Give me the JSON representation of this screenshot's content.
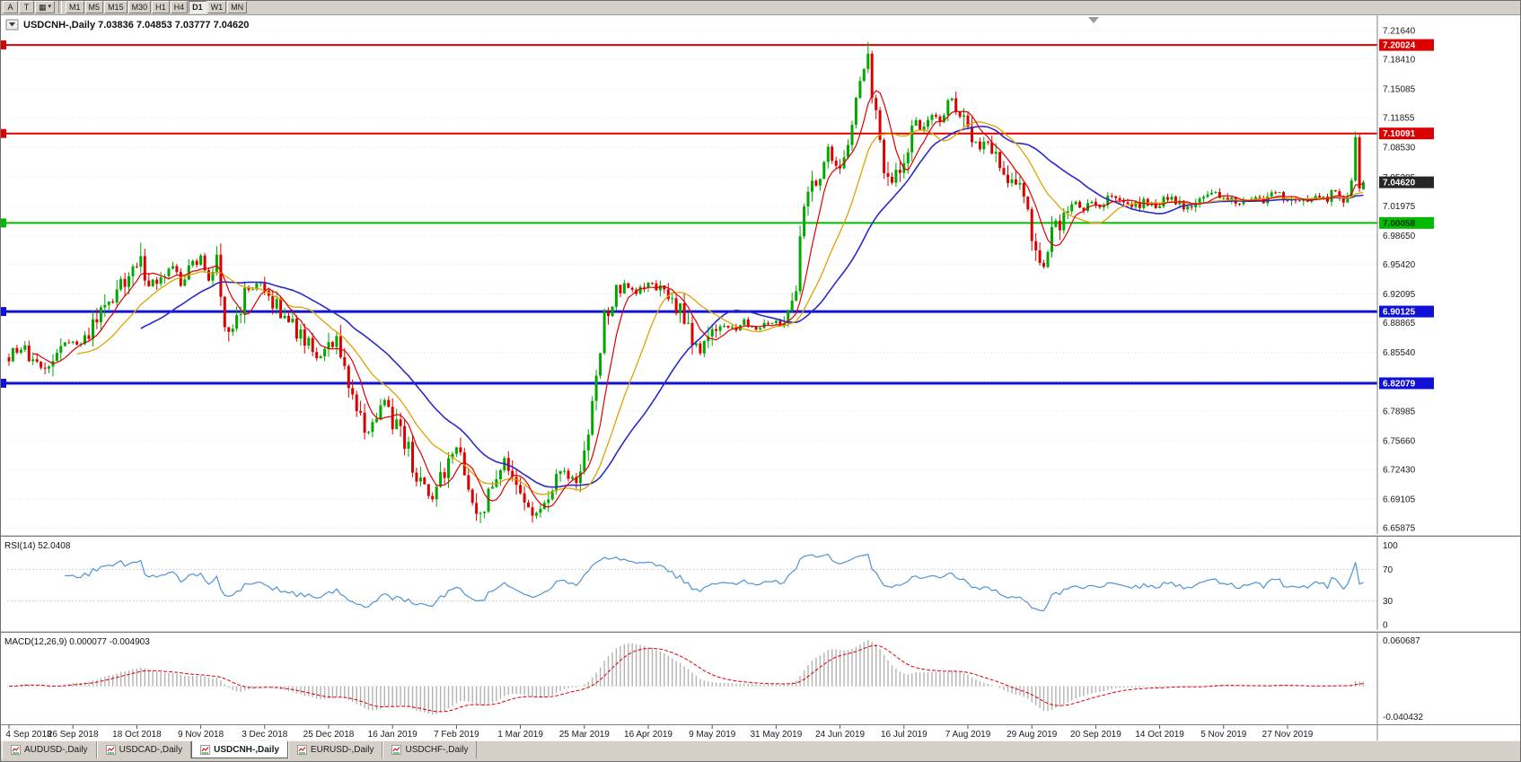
{
  "toolbar": {
    "left_buttons": [
      {
        "label": "A",
        "name": "toolbar-button-a"
      },
      {
        "label": "T",
        "name": "toolbar-button-t"
      },
      {
        "label": "",
        "name": "toolbar-templates-button",
        "icon": "template-grid-icon"
      }
    ],
    "timeframes": [
      "M1",
      "M5",
      "M15",
      "M30",
      "H1",
      "H4",
      "D1",
      "W1",
      "MN"
    ],
    "active_timeframe": "D1"
  },
  "chart": {
    "title_symbol": "USDCNH-,Daily",
    "ohlc_text": "7.03836 7.04853 7.03777 7.04620",
    "title_text": "USDCNH-,Daily  7.03836 7.04853 7.03777 7.04620",
    "current_price_label": "7.04620",
    "y_ticks": [
      "7.21640",
      "7.18410",
      "7.15085",
      "7.11855",
      "7.08530",
      "7.05205",
      "7.01975",
      "6.98650",
      "6.95420",
      "6.92095",
      "6.88865",
      "6.85540",
      "6.82310",
      "6.78985",
      "6.75660",
      "6.72430",
      "6.69105",
      "6.65875"
    ],
    "hlines": [
      {
        "label": "7.20024",
        "price": 7.20024,
        "color": "#dd0000",
        "text_color": "#ffffff",
        "width": 2
      },
      {
        "label": "7.10091",
        "price": 7.10091,
        "color": "#dd0000",
        "text_color": "#ffffff",
        "width": 2
      },
      {
        "label": "7.00058",
        "price": 7.00058,
        "color": "#00bb00",
        "text_color": "#003300",
        "width": 2
      },
      {
        "label": "6.90125",
        "price": 6.90125,
        "color": "#1010d6",
        "text_color": "#ffffff",
        "width": 3
      },
      {
        "label": "6.82079",
        "price": 6.82079,
        "color": "#1010d6",
        "text_color": "#ffffff",
        "width": 3
      }
    ]
  },
  "indicators": {
    "rsi": {
      "label": "RSI(14) 52.0408",
      "value": 52.0408,
      "scale_labels": [
        "100",
        "70",
        "30",
        "0"
      ],
      "levels": [
        70,
        30
      ]
    },
    "macd": {
      "label": "MACD(12,26,9) 0.000077 -0.004903",
      "main_value": 7.7e-05,
      "signal_value": -0.004903,
      "scale_top": "0.060687",
      "scale_bottom": "-0.040432"
    }
  },
  "x_axis": {
    "date_labels": [
      "4 Sep 2018",
      "26 Sep 2018",
      "18 Oct 2018",
      "9 Nov 2018",
      "3 Dec 2018",
      "25 Dec 2018",
      "16 Jan 2019",
      "7 Feb 2019",
      "1 Mar 2019",
      "25 Mar 2019",
      "16 Apr 2019",
      "9 May 2019",
      "31 May 2019",
      "24 Jun 2019",
      "16 Jul 2019",
      "7 Aug 2019",
      "29 Aug 2019",
      "20 Sep 2019",
      "14 Oct 2019",
      "5 Nov 2019",
      "27 Nov 2019"
    ]
  },
  "tabs": {
    "items": [
      "AUDUSD-,Daily",
      "USDCAD-,Daily",
      "USDCNH-,Daily",
      "EURUSD-,Daily",
      "USDCHF-,Daily"
    ],
    "active_index": 2
  },
  "colors": {
    "candle_up": "#00a800",
    "candle_down": "#dd0000",
    "ma_fast": "#e00000",
    "ma_medium": "#dfa200",
    "ma_slow": "#2a2ac8",
    "rsi_line": "#4f93d6",
    "macd_hist": "#b2b2b2",
    "macd_signal": "#dd0000",
    "bid_tag_bg": "#262626"
  },
  "chart_data": {
    "type": "candlestick",
    "symbol": "USDCNH",
    "timeframe": "Daily",
    "num_candles": 340,
    "price_range": [
      6.65875,
      7.2164
    ],
    "ohlc_current": {
      "open": 7.03836,
      "high": 7.04853,
      "low": 7.03777,
      "close": 7.0462
    },
    "horizontal_lines": [
      7.20024,
      7.10091,
      7.00058,
      6.90125,
      6.82079
    ],
    "date_labels_every_n_candles": 16,
    "moving_average_periods": {
      "fast": 7,
      "medium": 18,
      "slow": 34
    },
    "rsi": {
      "period": 14,
      "current": 52.0408,
      "range": [
        0,
        100
      ],
      "levels": [
        30,
        70
      ]
    },
    "macd": {
      "fast": 12,
      "slow": 26,
      "signal": 9,
      "current_main": 7.7e-05,
      "current_signal": -0.004903,
      "scale_max": 0.060687,
      "scale_min": -0.040432
    },
    "anchor_points": [
      [
        0,
        6.85
      ],
      [
        3,
        6.862
      ],
      [
        6,
        6.84
      ],
      [
        9,
        6.836
      ],
      [
        12,
        6.856
      ],
      [
        15,
        6.868
      ],
      [
        18,
        6.862
      ],
      [
        21,
        6.882
      ],
      [
        24,
        6.906
      ],
      [
        27,
        6.922
      ],
      [
        30,
        6.94
      ],
      [
        33,
        6.958
      ],
      [
        35,
        6.93
      ],
      [
        38,
        6.944
      ],
      [
        41,
        6.952
      ],
      [
        43,
        6.93
      ],
      [
        45,
        6.948
      ],
      [
        48,
        6.958
      ],
      [
        50,
        6.94
      ],
      [
        52,
        6.962
      ],
      [
        54,
        6.892
      ],
      [
        56,
        6.882
      ],
      [
        58,
        6.906
      ],
      [
        60,
        6.93
      ],
      [
        63,
        6.928
      ],
      [
        66,
        6.912
      ],
      [
        69,
        6.898
      ],
      [
        72,
        6.88
      ],
      [
        75,
        6.862
      ],
      [
        78,
        6.848
      ],
      [
        80,
        6.858
      ],
      [
        82,
        6.87
      ],
      [
        84,
        6.84
      ],
      [
        86,
        6.812
      ],
      [
        88,
        6.78
      ],
      [
        90,
        6.764
      ],
      [
        92,
        6.784
      ],
      [
        94,
        6.8
      ],
      [
        96,
        6.78
      ],
      [
        98,
        6.77
      ],
      [
        100,
        6.744
      ],
      [
        102,
        6.72
      ],
      [
        104,
        6.7
      ],
      [
        106,
        6.69
      ],
      [
        108,
        6.712
      ],
      [
        110,
        6.734
      ],
      [
        112,
        6.744
      ],
      [
        114,
        6.722
      ],
      [
        116,
        6.694
      ],
      [
        118,
        6.672
      ],
      [
        120,
        6.692
      ],
      [
        122,
        6.718
      ],
      [
        124,
        6.734
      ],
      [
        127,
        6.712
      ],
      [
        130,
        6.68
      ],
      [
        133,
        6.674
      ],
      [
        136,
        6.7
      ],
      [
        139,
        6.722
      ],
      [
        141,
        6.712
      ],
      [
        143,
        6.726
      ],
      [
        145,
        6.76
      ],
      [
        147,
        6.83
      ],
      [
        149,
        6.89
      ],
      [
        151,
        6.916
      ],
      [
        154,
        6.93
      ],
      [
        157,
        6.92
      ],
      [
        160,
        6.934
      ],
      [
        163,
        6.928
      ],
      [
        166,
        6.912
      ],
      [
        169,
        6.898
      ],
      [
        171,
        6.87
      ],
      [
        173,
        6.852
      ],
      [
        175,
        6.872
      ],
      [
        178,
        6.888
      ],
      [
        181,
        6.882
      ],
      [
        184,
        6.89
      ],
      [
        187,
        6.884
      ],
      [
        190,
        6.892
      ],
      [
        193,
        6.888
      ],
      [
        195,
        6.894
      ],
      [
        197,
        6.934
      ],
      [
        199,
        7.02
      ],
      [
        201,
        7.056
      ],
      [
        203,
        7.046
      ],
      [
        205,
        7.086
      ],
      [
        207,
        7.062
      ],
      [
        209,
        7.08
      ],
      [
        211,
        7.12
      ],
      [
        213,
        7.156
      ],
      [
        215,
        7.184
      ],
      [
        217,
        7.12
      ],
      [
        219,
        7.068
      ],
      [
        221,
        7.048
      ],
      [
        223,
        7.062
      ],
      [
        225,
        7.09
      ],
      [
        227,
        7.11
      ],
      [
        229,
        7.104
      ],
      [
        231,
        7.12
      ],
      [
        233,
        7.116
      ],
      [
        235,
        7.146
      ],
      [
        237,
        7.134
      ],
      [
        239,
        7.118
      ],
      [
        241,
        7.102
      ],
      [
        243,
        7.088
      ],
      [
        245,
        7.096
      ],
      [
        247,
        7.08
      ],
      [
        249,
        7.06
      ],
      [
        251,
        7.046
      ],
      [
        253,
        7.034
      ],
      [
        255,
        7.008
      ],
      [
        257,
        6.972
      ],
      [
        259,
        6.956
      ],
      [
        261,
        6.984
      ],
      [
        263,
        7.004
      ],
      [
        265,
        7.014
      ],
      [
        267,
        7.022
      ],
      [
        269,
        7.014
      ],
      [
        271,
        7.026
      ],
      [
        273,
        7.02
      ],
      [
        275,
        7.03
      ],
      [
        278,
        7.024
      ],
      [
        281,
        7.016
      ],
      [
        284,
        7.026
      ],
      [
        287,
        7.02
      ],
      [
        290,
        7.03
      ],
      [
        293,
        7.024
      ],
      [
        296,
        7.016
      ],
      [
        299,
        7.026
      ],
      [
        302,
        7.034
      ],
      [
        305,
        7.026
      ],
      [
        308,
        7.02
      ],
      [
        311,
        7.03
      ],
      [
        314,
        7.026
      ],
      [
        317,
        7.034
      ],
      [
        320,
        7.028
      ],
      [
        323,
        7.022
      ],
      [
        326,
        7.03
      ],
      [
        329,
        7.026
      ],
      [
        332,
        7.036
      ],
      [
        334,
        7.03
      ],
      [
        336,
        7.05
      ],
      [
        337,
        7.092
      ],
      [
        338,
        7.036
      ],
      [
        339,
        7.046
      ]
    ],
    "spikes": [
      [
        33,
        "high",
        6.9785
      ],
      [
        118,
        "low",
        6.664
      ],
      [
        215,
        "high",
        7.2035
      ],
      [
        259,
        "low",
        6.953
      ],
      [
        337,
        "high",
        7.103
      ]
    ]
  }
}
